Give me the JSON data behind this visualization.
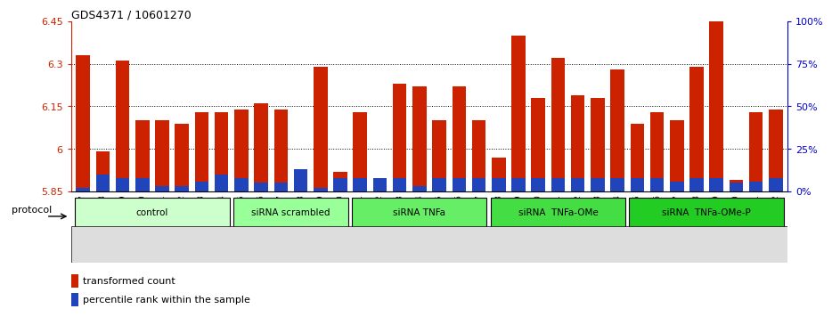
{
  "title": "GDS4371 / 10601270",
  "samples": [
    "GSM790907",
    "GSM790908",
    "GSM790909",
    "GSM790910",
    "GSM790911",
    "GSM790912",
    "GSM790913",
    "GSM790914",
    "GSM790915",
    "GSM790916",
    "GSM790917",
    "GSM790918",
    "GSM790919",
    "GSM790920",
    "GSM790921",
    "GSM790922",
    "GSM790923",
    "GSM790924",
    "GSM790925",
    "GSM790926",
    "GSM790927",
    "GSM790928",
    "GSM790929",
    "GSM790930",
    "GSM790931",
    "GSM790932",
    "GSM790933",
    "GSM790934",
    "GSM790935",
    "GSM790936",
    "GSM790937",
    "GSM790938",
    "GSM790939",
    "GSM790940",
    "GSM790941",
    "GSM790942"
  ],
  "red_values": [
    6.33,
    5.99,
    6.31,
    6.1,
    6.1,
    6.09,
    6.13,
    6.13,
    6.14,
    6.16,
    6.14,
    5.85,
    6.29,
    5.92,
    6.13,
    5.87,
    6.23,
    6.22,
    6.1,
    6.22,
    6.1,
    5.97,
    6.4,
    6.18,
    6.32,
    6.19,
    6.18,
    6.28,
    6.09,
    6.13,
    6.1,
    6.29,
    6.45,
    5.89,
    6.13,
    6.14
  ],
  "percentile_values": [
    2,
    10,
    8,
    8,
    3,
    3,
    6,
    10,
    8,
    5,
    5,
    13,
    2,
    8,
    8,
    8,
    8,
    3,
    8,
    8,
    8,
    8,
    8,
    8,
    8,
    8,
    8,
    8,
    8,
    8,
    6,
    8,
    8,
    5,
    6,
    8
  ],
  "groups": [
    {
      "label": "control",
      "start": 0,
      "end": 7,
      "color": "#ccffcc"
    },
    {
      "label": "siRNA scrambled",
      "start": 8,
      "end": 13,
      "color": "#99ff99"
    },
    {
      "label": "siRNA TNFa",
      "start": 14,
      "end": 20,
      "color": "#66ee66"
    },
    {
      "label": "siRNA  TNFa-OMe",
      "start": 21,
      "end": 27,
      "color": "#44dd44"
    },
    {
      "label": "siRNA  TNFa-OMe-P",
      "start": 28,
      "end": 35,
      "color": "#22cc22"
    }
  ],
  "ymin": 5.85,
  "ymax": 6.45,
  "yticks": [
    5.85,
    6.0,
    6.15,
    6.3,
    6.45
  ],
  "ytick_labels": [
    "5.85",
    "6",
    "6.15",
    "6.3",
    "6.45"
  ],
  "right_yticks": [
    0,
    25,
    50,
    75,
    100
  ],
  "right_ytick_labels": [
    "0%",
    "25%",
    "50%",
    "75%",
    "100%"
  ],
  "bar_color": "#cc2200",
  "blue_color": "#2244bb",
  "bar_width": 0.7,
  "background_color": "#ffffff"
}
